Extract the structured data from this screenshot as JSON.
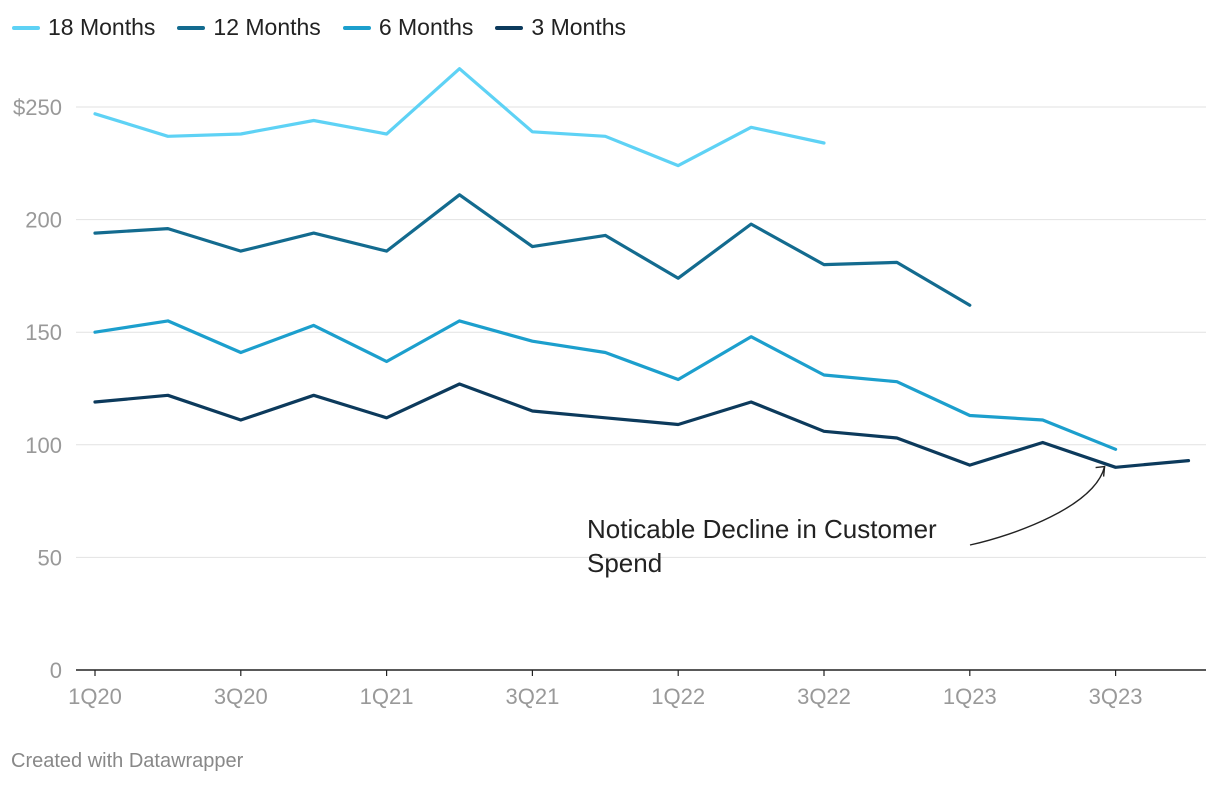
{
  "chart_data": {
    "type": "line",
    "x": [
      "1Q20",
      "2Q20",
      "3Q20",
      "4Q20",
      "1Q21",
      "2Q21",
      "3Q21",
      "4Q21",
      "1Q22",
      "2Q22",
      "3Q22",
      "4Q22",
      "1Q23",
      "2Q23",
      "3Q23",
      "4Q23"
    ],
    "x_tick_labels": [
      "1Q20",
      "3Q20",
      "1Q21",
      "3Q21",
      "1Q22",
      "3Q22",
      "1Q23",
      "3Q23"
    ],
    "y_ticks": [
      {
        "value": 0,
        "label": "0"
      },
      {
        "value": 50,
        "label": "50"
      },
      {
        "value": 100,
        "label": "100"
      },
      {
        "value": 150,
        "label": "150"
      },
      {
        "value": 200,
        "label": "200"
      },
      {
        "value": 250,
        "label": "$250"
      }
    ],
    "ylim": [
      0,
      250
    ],
    "grid": true,
    "legend_position": "top-left",
    "series": [
      {
        "name": "18 Months",
        "color": "#5ed2f5",
        "values": [
          247,
          237,
          238,
          244,
          238,
          267,
          239,
          237,
          224,
          241,
          234,
          null,
          null,
          null,
          null,
          null
        ]
      },
      {
        "name": "12 Months",
        "color": "#136b8f",
        "values": [
          194,
          196,
          186,
          194,
          186,
          211,
          188,
          193,
          174,
          198,
          180,
          181,
          162,
          null,
          null,
          null
        ]
      },
      {
        "name": "6 Months",
        "color": "#1c9fcd",
        "values": [
          150,
          155,
          141,
          153,
          137,
          155,
          146,
          141,
          129,
          148,
          131,
          128,
          113,
          111,
          98,
          null
        ]
      },
      {
        "name": "3 Months",
        "color": "#0c3a5c",
        "values": [
          119,
          122,
          111,
          122,
          112,
          127,
          115,
          112,
          109,
          119,
          106,
          103,
          91,
          101,
          90,
          93
        ]
      }
    ],
    "annotation": {
      "lines": [
        "Noticable Decline in Customer",
        "Spend"
      ],
      "target_x": "3Q23",
      "target_value": 93
    }
  },
  "footer": "Created with Datawrapper"
}
